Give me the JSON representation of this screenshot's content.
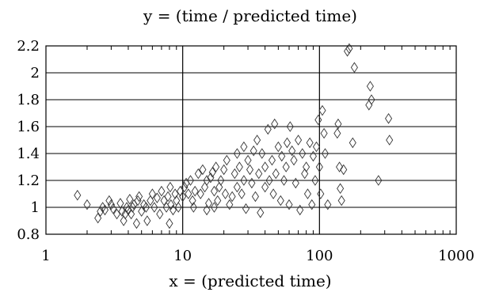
{
  "chart_data": {
    "type": "scatter",
    "title": "y = (time / predicted time)",
    "xlabel": "x = (predicted time)",
    "ylabel": "",
    "x_scale": "log",
    "xlim": [
      1,
      1000
    ],
    "ylim": [
      0.8,
      2.2
    ],
    "xticks": [
      1,
      10,
      100,
      1000
    ],
    "xtick_labels": [
      "1",
      "10",
      "100",
      "1000"
    ],
    "yticks": [
      0.8,
      1.0,
      1.2,
      1.4,
      1.6,
      1.8,
      2.0,
      2.2
    ],
    "ytick_labels": [
      "0.8",
      "1",
      "1.2",
      "1.4",
      "1.6",
      "1.8",
      "2",
      "2.2"
    ],
    "grid": true,
    "marker": "diamond-open",
    "series": [
      {
        "x": [
          1.7,
          2.0,
          2.4,
          2.5,
          2.6,
          2.7,
          2.9,
          3.0,
          3.1,
          3.3,
          3.5,
          3.6,
          3.7,
          3.8,
          3.9,
          4.0,
          4.1,
          4.2,
          4.3,
          4.4,
          4.6,
          4.7,
          4.8,
          5.0,
          5.2,
          5.4,
          5.5,
          5.8,
          6.0,
          6.2,
          6.5,
          6.8,
          7.0,
          7.3,
          7.6,
          7.8,
          8.0,
          8.1,
          8.2,
          8.5,
          8.8,
          9.0,
          9.3,
          9.6,
          10.0,
          10.3,
          10.6,
          11.0,
          11.4,
          11.8,
          12.0,
          12.3,
          13.0,
          13.5,
          14.0,
          14.5,
          15.0,
          15.0,
          15.5,
          16.0,
          16.5,
          17.0,
          17.0,
          17.5,
          18.0,
          18.5,
          19.0,
          20.0,
          20.5,
          21.0,
          22.0,
          23.0,
          24.0,
          25.0,
          25.0,
          26.0,
          27.0,
          28.0,
          28.0,
          29.0,
          30.0,
          31.0,
          32.0,
          33.0,
          34.0,
          35.0,
          36.0,
          37.0,
          38.0,
          40.0,
          40.0,
          42.0,
          43.0,
          45.0,
          46.0,
          47.0,
          48.0,
          50.0,
          52.0,
          53.0,
          55.0,
          57.0,
          58.0,
          60.0,
          61.0,
          63.0,
          65.0,
          67.0,
          70.0,
          72.0,
          75.0,
          78.0,
          80.0,
          82.0,
          85.0,
          88.0,
          90.0,
          93.0,
          95.0,
          98.0,
          100.0,
          102.0,
          105.0,
          108.0,
          110.0,
          115.0,
          135.0,
          137.0,
          140.0,
          142.0,
          145.0,
          150.0,
          160.0,
          165.0,
          175.0,
          180.0,
          230.0,
          235.0,
          240.0,
          270.0,
          320.0,
          325.0
        ],
        "y": [
          1.09,
          1.02,
          0.92,
          0.97,
          1.0,
          0.98,
          1.05,
          1.02,
          0.99,
          0.95,
          1.03,
          0.97,
          0.9,
          0.95,
          1.0,
          0.98,
          1.06,
          0.95,
          1.0,
          1.02,
          0.88,
          1.05,
          1.08,
          0.97,
          1.02,
          1.0,
          0.9,
          1.05,
          1.1,
          1.0,
          1.07,
          0.95,
          1.12,
          1.05,
          1.0,
          1.08,
          0.88,
          1.15,
          1.02,
          0.98,
          1.1,
          1.05,
          1.0,
          1.12,
          1.08,
          1.15,
          1.18,
          1.1,
          1.2,
          1.05,
          1.0,
          1.12,
          1.25,
          1.1,
          1.28,
          1.15,
          0.98,
          1.2,
          1.03,
          1.22,
          1.26,
          1.12,
          1.0,
          1.3,
          1.05,
          1.15,
          1.2,
          1.28,
          1.1,
          1.35,
          1.02,
          1.08,
          1.25,
          1.15,
          1.4,
          1.3,
          1.1,
          1.45,
          1.2,
          0.99,
          1.35,
          1.28,
          1.18,
          1.42,
          1.08,
          1.5,
          1.25,
          0.96,
          1.4,
          1.3,
          1.15,
          1.58,
          1.2,
          1.35,
          1.1,
          1.62,
          1.25,
          1.45,
          1.05,
          1.38,
          1.2,
          1.3,
          1.48,
          1.02,
          1.6,
          1.42,
          1.35,
          1.18,
          1.5,
          0.98,
          1.4,
          1.25,
          1.3,
          1.1,
          1.48,
          1.02,
          1.38,
          1.2,
          1.45,
          1.65,
          1.3,
          1.1,
          1.72,
          1.55,
          1.4,
          1.02,
          1.55,
          1.62,
          1.3,
          1.14,
          1.05,
          1.28,
          2.16,
          2.18,
          1.48,
          2.04,
          1.76,
          1.9,
          1.8,
          1.2,
          1.66,
          1.5
        ]
      }
    ]
  }
}
